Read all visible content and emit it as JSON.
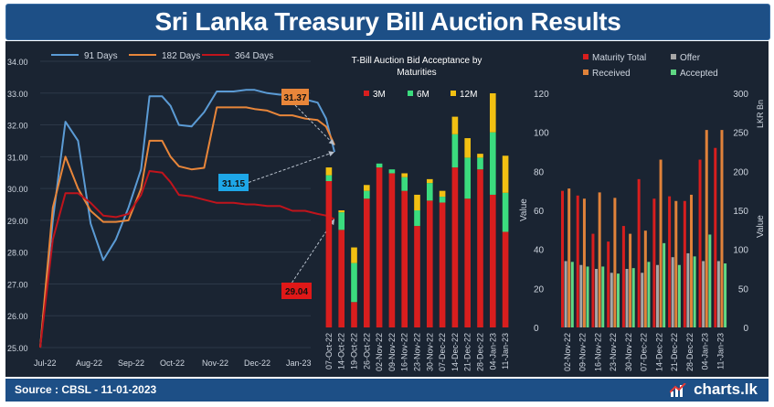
{
  "header": {
    "title": "Sri Lanka Treasury Bill Auction Results"
  },
  "footer": {
    "source": "Source : CBSL - 11-01-2023",
    "brand": "charts.lk"
  },
  "colors": {
    "bg": "#1a2432",
    "gridline": "#2c3848",
    "axis_text": "#cfd6e0",
    "line91": "#5b9bd5",
    "line182": "#e8863a",
    "line364": "#c0141c",
    "bar3m": "#d81e1e",
    "bar6m": "#3bdc7e",
    "bar12m": "#f2c012",
    "maturity": "#d81e1e",
    "offer": "#a6a6a6",
    "received": "#e0823a",
    "accepted": "#5fd884",
    "callout_182": "#e8863a",
    "callout_91": "#1ea7e8",
    "callout_364": "#e01818"
  },
  "chart_data": [
    {
      "type": "line",
      "title": "",
      "legend_position": "top",
      "x_tick_labels": [
        "Jul-22",
        "Aug-22",
        "Sep-22",
        "Oct-22",
        "Nov-22",
        "Dec-22",
        "Jan-23"
      ],
      "ylim": [
        25,
        34
      ],
      "y_ticks": [
        "25.00",
        "26.00",
        "27.00",
        "28.00",
        "29.00",
        "30.00",
        "31.00",
        "32.00",
        "33.00",
        "34.00"
      ],
      "series": [
        {
          "name": "91 Days",
          "color": "#5b9bd5",
          "points": [
            [
              0,
              25.0
            ],
            [
              0.3,
              29.0
            ],
            [
              0.6,
              32.1
            ],
            [
              0.9,
              31.5
            ],
            [
              1.2,
              28.9
            ],
            [
              1.5,
              27.75
            ],
            [
              1.8,
              28.4
            ],
            [
              2.1,
              29.4
            ],
            [
              2.4,
              30.6
            ],
            [
              2.6,
              32.9
            ],
            [
              2.9,
              32.9
            ],
            [
              3.1,
              32.6
            ],
            [
              3.3,
              32.0
            ],
            [
              3.6,
              31.95
            ],
            [
              3.9,
              32.4
            ],
            [
              4.2,
              33.05
            ],
            [
              4.6,
              33.05
            ],
            [
              4.9,
              33.1
            ],
            [
              5.1,
              33.1
            ],
            [
              5.4,
              33.0
            ],
            [
              5.7,
              32.95
            ],
            [
              6.0,
              32.95
            ],
            [
              6.3,
              32.8
            ],
            [
              6.6,
              32.7
            ],
            [
              6.8,
              32.2
            ],
            [
              7.0,
              31.15
            ]
          ]
        },
        {
          "name": "182 Days",
          "color": "#e8863a",
          "points": [
            [
              0,
              25.0
            ],
            [
              0.3,
              29.4
            ],
            [
              0.6,
              31.0
            ],
            [
              0.9,
              30.0
            ],
            [
              1.2,
              29.3
            ],
            [
              1.5,
              28.95
            ],
            [
              1.8,
              28.95
            ],
            [
              2.1,
              29.0
            ],
            [
              2.4,
              30.0
            ],
            [
              2.6,
              31.5
            ],
            [
              2.9,
              31.5
            ],
            [
              3.1,
              31.0
            ],
            [
              3.3,
              30.7
            ],
            [
              3.6,
              30.6
            ],
            [
              3.9,
              30.65
            ],
            [
              4.2,
              32.55
            ],
            [
              4.6,
              32.55
            ],
            [
              4.9,
              32.55
            ],
            [
              5.1,
              32.5
            ],
            [
              5.4,
              32.45
            ],
            [
              5.7,
              32.3
            ],
            [
              6.0,
              32.3
            ],
            [
              6.3,
              32.2
            ],
            [
              6.6,
              32.15
            ],
            [
              6.8,
              31.95
            ],
            [
              7.0,
              31.37
            ]
          ]
        },
        {
          "name": "364 Days",
          "color": "#c0141c",
          "points": [
            [
              0,
              25.0
            ],
            [
              0.3,
              28.4
            ],
            [
              0.6,
              29.85
            ],
            [
              0.9,
              29.85
            ],
            [
              1.2,
              29.55
            ],
            [
              1.5,
              29.15
            ],
            [
              1.8,
              29.1
            ],
            [
              2.1,
              29.2
            ],
            [
              2.4,
              29.8
            ],
            [
              2.6,
              30.55
            ],
            [
              2.9,
              30.5
            ],
            [
              3.1,
              30.2
            ],
            [
              3.3,
              29.8
            ],
            [
              3.6,
              29.75
            ],
            [
              3.9,
              29.65
            ],
            [
              4.2,
              29.55
            ],
            [
              4.6,
              29.55
            ],
            [
              4.9,
              29.5
            ],
            [
              5.1,
              29.5
            ],
            [
              5.4,
              29.45
            ],
            [
              5.7,
              29.45
            ],
            [
              6.0,
              29.3
            ],
            [
              6.3,
              29.3
            ],
            [
              6.6,
              29.2
            ],
            [
              6.8,
              29.15
            ],
            [
              7.0,
              29.04
            ]
          ]
        }
      ],
      "callouts": [
        {
          "label": "31.37",
          "series": "182 Days",
          "color": "#e8863a"
        },
        {
          "label": "31.15",
          "series": "91 Days",
          "color": "#1ea7e8"
        },
        {
          "label": "29.04",
          "series": "364 Days",
          "color": "#e01818"
        }
      ]
    },
    {
      "type": "bar",
      "stacked": true,
      "title": "T-Bill Auction Bid Acceptance by Maturities",
      "ylabel": "Value",
      "ylim": [
        0,
        120
      ],
      "y_ticks": [
        "0",
        "20",
        "40",
        "60",
        "80",
        "100",
        "120"
      ],
      "categories": [
        "07-Oct-22",
        "14-Oct-22",
        "19-Oct-22",
        "26-Oct-22",
        "02-Nov-22",
        "09-Nov-22",
        "16-Nov-22",
        "23-Nov-22",
        "30-Nov-22",
        "07-Dec-22",
        "14-Dec-22",
        "21-Dec-22",
        "28-Dec-22",
        "04-Jan-23",
        "11-Jan-23"
      ],
      "series": [
        {
          "name": "3M",
          "color": "#d81e1e",
          "values": [
            75,
            50,
            13,
            66,
            82,
            79,
            70,
            52,
            65,
            64,
            82,
            66,
            81,
            68,
            49
          ]
        },
        {
          "name": "6M",
          "color": "#3bdc7e",
          "values": [
            3,
            9,
            20,
            4,
            2,
            2,
            7,
            8,
            9,
            3,
            17,
            21,
            6,
            32,
            20
          ]
        },
        {
          "name": "12M",
          "color": "#f2c012",
          "values": [
            4,
            1,
            8,
            3,
            0,
            0,
            2,
            8,
            2,
            3,
            9,
            10,
            2,
            20,
            19
          ]
        }
      ]
    },
    {
      "type": "bar",
      "title": "",
      "ylabel": "Value",
      "ylabel_right": "LKR Bn",
      "ylim": [
        0,
        300
      ],
      "y_ticks_right": [
        "0",
        "50",
        "100",
        "150",
        "200",
        "250",
        "300"
      ],
      "categories": [
        "02-Nov-22",
        "09-Nov-22",
        "16-Nov-22",
        "23-Nov-22",
        "30-Nov-22",
        "07-Dec-22",
        "14-Dec-22",
        "21-Dec-22",
        "28-Dec-22",
        "04-Jan-23",
        "11-Jan-23"
      ],
      "series": [
        {
          "name": "Maturity Total",
          "color": "#d81e1e",
          "values": [
            175,
            169,
            120,
            110,
            130,
            190,
            165,
            168,
            162,
            215,
            230
          ]
        },
        {
          "name": "Offer",
          "color": "#a6a6a6",
          "values": [
            85,
            80,
            75,
            70,
            75,
            70,
            80,
            90,
            95,
            85,
            85
          ]
        },
        {
          "name": "Received",
          "color": "#e0823a",
          "values": [
            178,
            165,
            173,
            166,
            120,
            124,
            215,
            162,
            170,
            253,
            253
          ]
        },
        {
          "name": "Accepted",
          "color": "#5fd884",
          "values": [
            84,
            78,
            78,
            69,
            76,
            84,
            108,
            80,
            91,
            119,
            82
          ]
        }
      ]
    }
  ]
}
